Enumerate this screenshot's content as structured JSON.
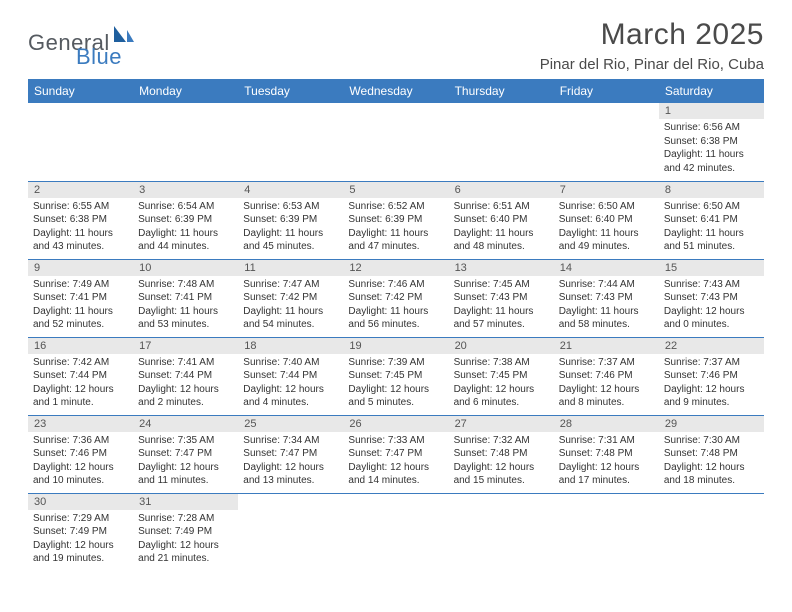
{
  "logo": {
    "general": "General",
    "blue": "Blue"
  },
  "title": "March 2025",
  "location": "Pinar del Rio, Pinar del Rio, Cuba",
  "colors": {
    "header_bg": "#3b7bbf",
    "header_text": "#ffffff",
    "daynum_bg": "#e8e8e8",
    "border": "#3b7bbf",
    "body_text": "#333333",
    "title_text": "#4a4a4a",
    "logo_gray": "#555a60",
    "logo_blue": "#3b7bbf"
  },
  "weekdays": [
    "Sunday",
    "Monday",
    "Tuesday",
    "Wednesday",
    "Thursday",
    "Friday",
    "Saturday"
  ],
  "weeks": [
    [
      null,
      null,
      null,
      null,
      null,
      null,
      {
        "n": "1",
        "sr": "Sunrise: 6:56 AM",
        "ss": "Sunset: 6:38 PM",
        "dl": "Daylight: 11 hours and 42 minutes."
      }
    ],
    [
      {
        "n": "2",
        "sr": "Sunrise: 6:55 AM",
        "ss": "Sunset: 6:38 PM",
        "dl": "Daylight: 11 hours and 43 minutes."
      },
      {
        "n": "3",
        "sr": "Sunrise: 6:54 AM",
        "ss": "Sunset: 6:39 PM",
        "dl": "Daylight: 11 hours and 44 minutes."
      },
      {
        "n": "4",
        "sr": "Sunrise: 6:53 AM",
        "ss": "Sunset: 6:39 PM",
        "dl": "Daylight: 11 hours and 45 minutes."
      },
      {
        "n": "5",
        "sr": "Sunrise: 6:52 AM",
        "ss": "Sunset: 6:39 PM",
        "dl": "Daylight: 11 hours and 47 minutes."
      },
      {
        "n": "6",
        "sr": "Sunrise: 6:51 AM",
        "ss": "Sunset: 6:40 PM",
        "dl": "Daylight: 11 hours and 48 minutes."
      },
      {
        "n": "7",
        "sr": "Sunrise: 6:50 AM",
        "ss": "Sunset: 6:40 PM",
        "dl": "Daylight: 11 hours and 49 minutes."
      },
      {
        "n": "8",
        "sr": "Sunrise: 6:50 AM",
        "ss": "Sunset: 6:41 PM",
        "dl": "Daylight: 11 hours and 51 minutes."
      }
    ],
    [
      {
        "n": "9",
        "sr": "Sunrise: 7:49 AM",
        "ss": "Sunset: 7:41 PM",
        "dl": "Daylight: 11 hours and 52 minutes."
      },
      {
        "n": "10",
        "sr": "Sunrise: 7:48 AM",
        "ss": "Sunset: 7:41 PM",
        "dl": "Daylight: 11 hours and 53 minutes."
      },
      {
        "n": "11",
        "sr": "Sunrise: 7:47 AM",
        "ss": "Sunset: 7:42 PM",
        "dl": "Daylight: 11 hours and 54 minutes."
      },
      {
        "n": "12",
        "sr": "Sunrise: 7:46 AM",
        "ss": "Sunset: 7:42 PM",
        "dl": "Daylight: 11 hours and 56 minutes."
      },
      {
        "n": "13",
        "sr": "Sunrise: 7:45 AM",
        "ss": "Sunset: 7:43 PM",
        "dl": "Daylight: 11 hours and 57 minutes."
      },
      {
        "n": "14",
        "sr": "Sunrise: 7:44 AM",
        "ss": "Sunset: 7:43 PM",
        "dl": "Daylight: 11 hours and 58 minutes."
      },
      {
        "n": "15",
        "sr": "Sunrise: 7:43 AM",
        "ss": "Sunset: 7:43 PM",
        "dl": "Daylight: 12 hours and 0 minutes."
      }
    ],
    [
      {
        "n": "16",
        "sr": "Sunrise: 7:42 AM",
        "ss": "Sunset: 7:44 PM",
        "dl": "Daylight: 12 hours and 1 minute."
      },
      {
        "n": "17",
        "sr": "Sunrise: 7:41 AM",
        "ss": "Sunset: 7:44 PM",
        "dl": "Daylight: 12 hours and 2 minutes."
      },
      {
        "n": "18",
        "sr": "Sunrise: 7:40 AM",
        "ss": "Sunset: 7:44 PM",
        "dl": "Daylight: 12 hours and 4 minutes."
      },
      {
        "n": "19",
        "sr": "Sunrise: 7:39 AM",
        "ss": "Sunset: 7:45 PM",
        "dl": "Daylight: 12 hours and 5 minutes."
      },
      {
        "n": "20",
        "sr": "Sunrise: 7:38 AM",
        "ss": "Sunset: 7:45 PM",
        "dl": "Daylight: 12 hours and 6 minutes."
      },
      {
        "n": "21",
        "sr": "Sunrise: 7:37 AM",
        "ss": "Sunset: 7:46 PM",
        "dl": "Daylight: 12 hours and 8 minutes."
      },
      {
        "n": "22",
        "sr": "Sunrise: 7:37 AM",
        "ss": "Sunset: 7:46 PM",
        "dl": "Daylight: 12 hours and 9 minutes."
      }
    ],
    [
      {
        "n": "23",
        "sr": "Sunrise: 7:36 AM",
        "ss": "Sunset: 7:46 PM",
        "dl": "Daylight: 12 hours and 10 minutes."
      },
      {
        "n": "24",
        "sr": "Sunrise: 7:35 AM",
        "ss": "Sunset: 7:47 PM",
        "dl": "Daylight: 12 hours and 11 minutes."
      },
      {
        "n": "25",
        "sr": "Sunrise: 7:34 AM",
        "ss": "Sunset: 7:47 PM",
        "dl": "Daylight: 12 hours and 13 minutes."
      },
      {
        "n": "26",
        "sr": "Sunrise: 7:33 AM",
        "ss": "Sunset: 7:47 PM",
        "dl": "Daylight: 12 hours and 14 minutes."
      },
      {
        "n": "27",
        "sr": "Sunrise: 7:32 AM",
        "ss": "Sunset: 7:48 PM",
        "dl": "Daylight: 12 hours and 15 minutes."
      },
      {
        "n": "28",
        "sr": "Sunrise: 7:31 AM",
        "ss": "Sunset: 7:48 PM",
        "dl": "Daylight: 12 hours and 17 minutes."
      },
      {
        "n": "29",
        "sr": "Sunrise: 7:30 AM",
        "ss": "Sunset: 7:48 PM",
        "dl": "Daylight: 12 hours and 18 minutes."
      }
    ],
    [
      {
        "n": "30",
        "sr": "Sunrise: 7:29 AM",
        "ss": "Sunset: 7:49 PM",
        "dl": "Daylight: 12 hours and 19 minutes."
      },
      {
        "n": "31",
        "sr": "Sunrise: 7:28 AM",
        "ss": "Sunset: 7:49 PM",
        "dl": "Daylight: 12 hours and 21 minutes."
      },
      null,
      null,
      null,
      null,
      null
    ]
  ]
}
